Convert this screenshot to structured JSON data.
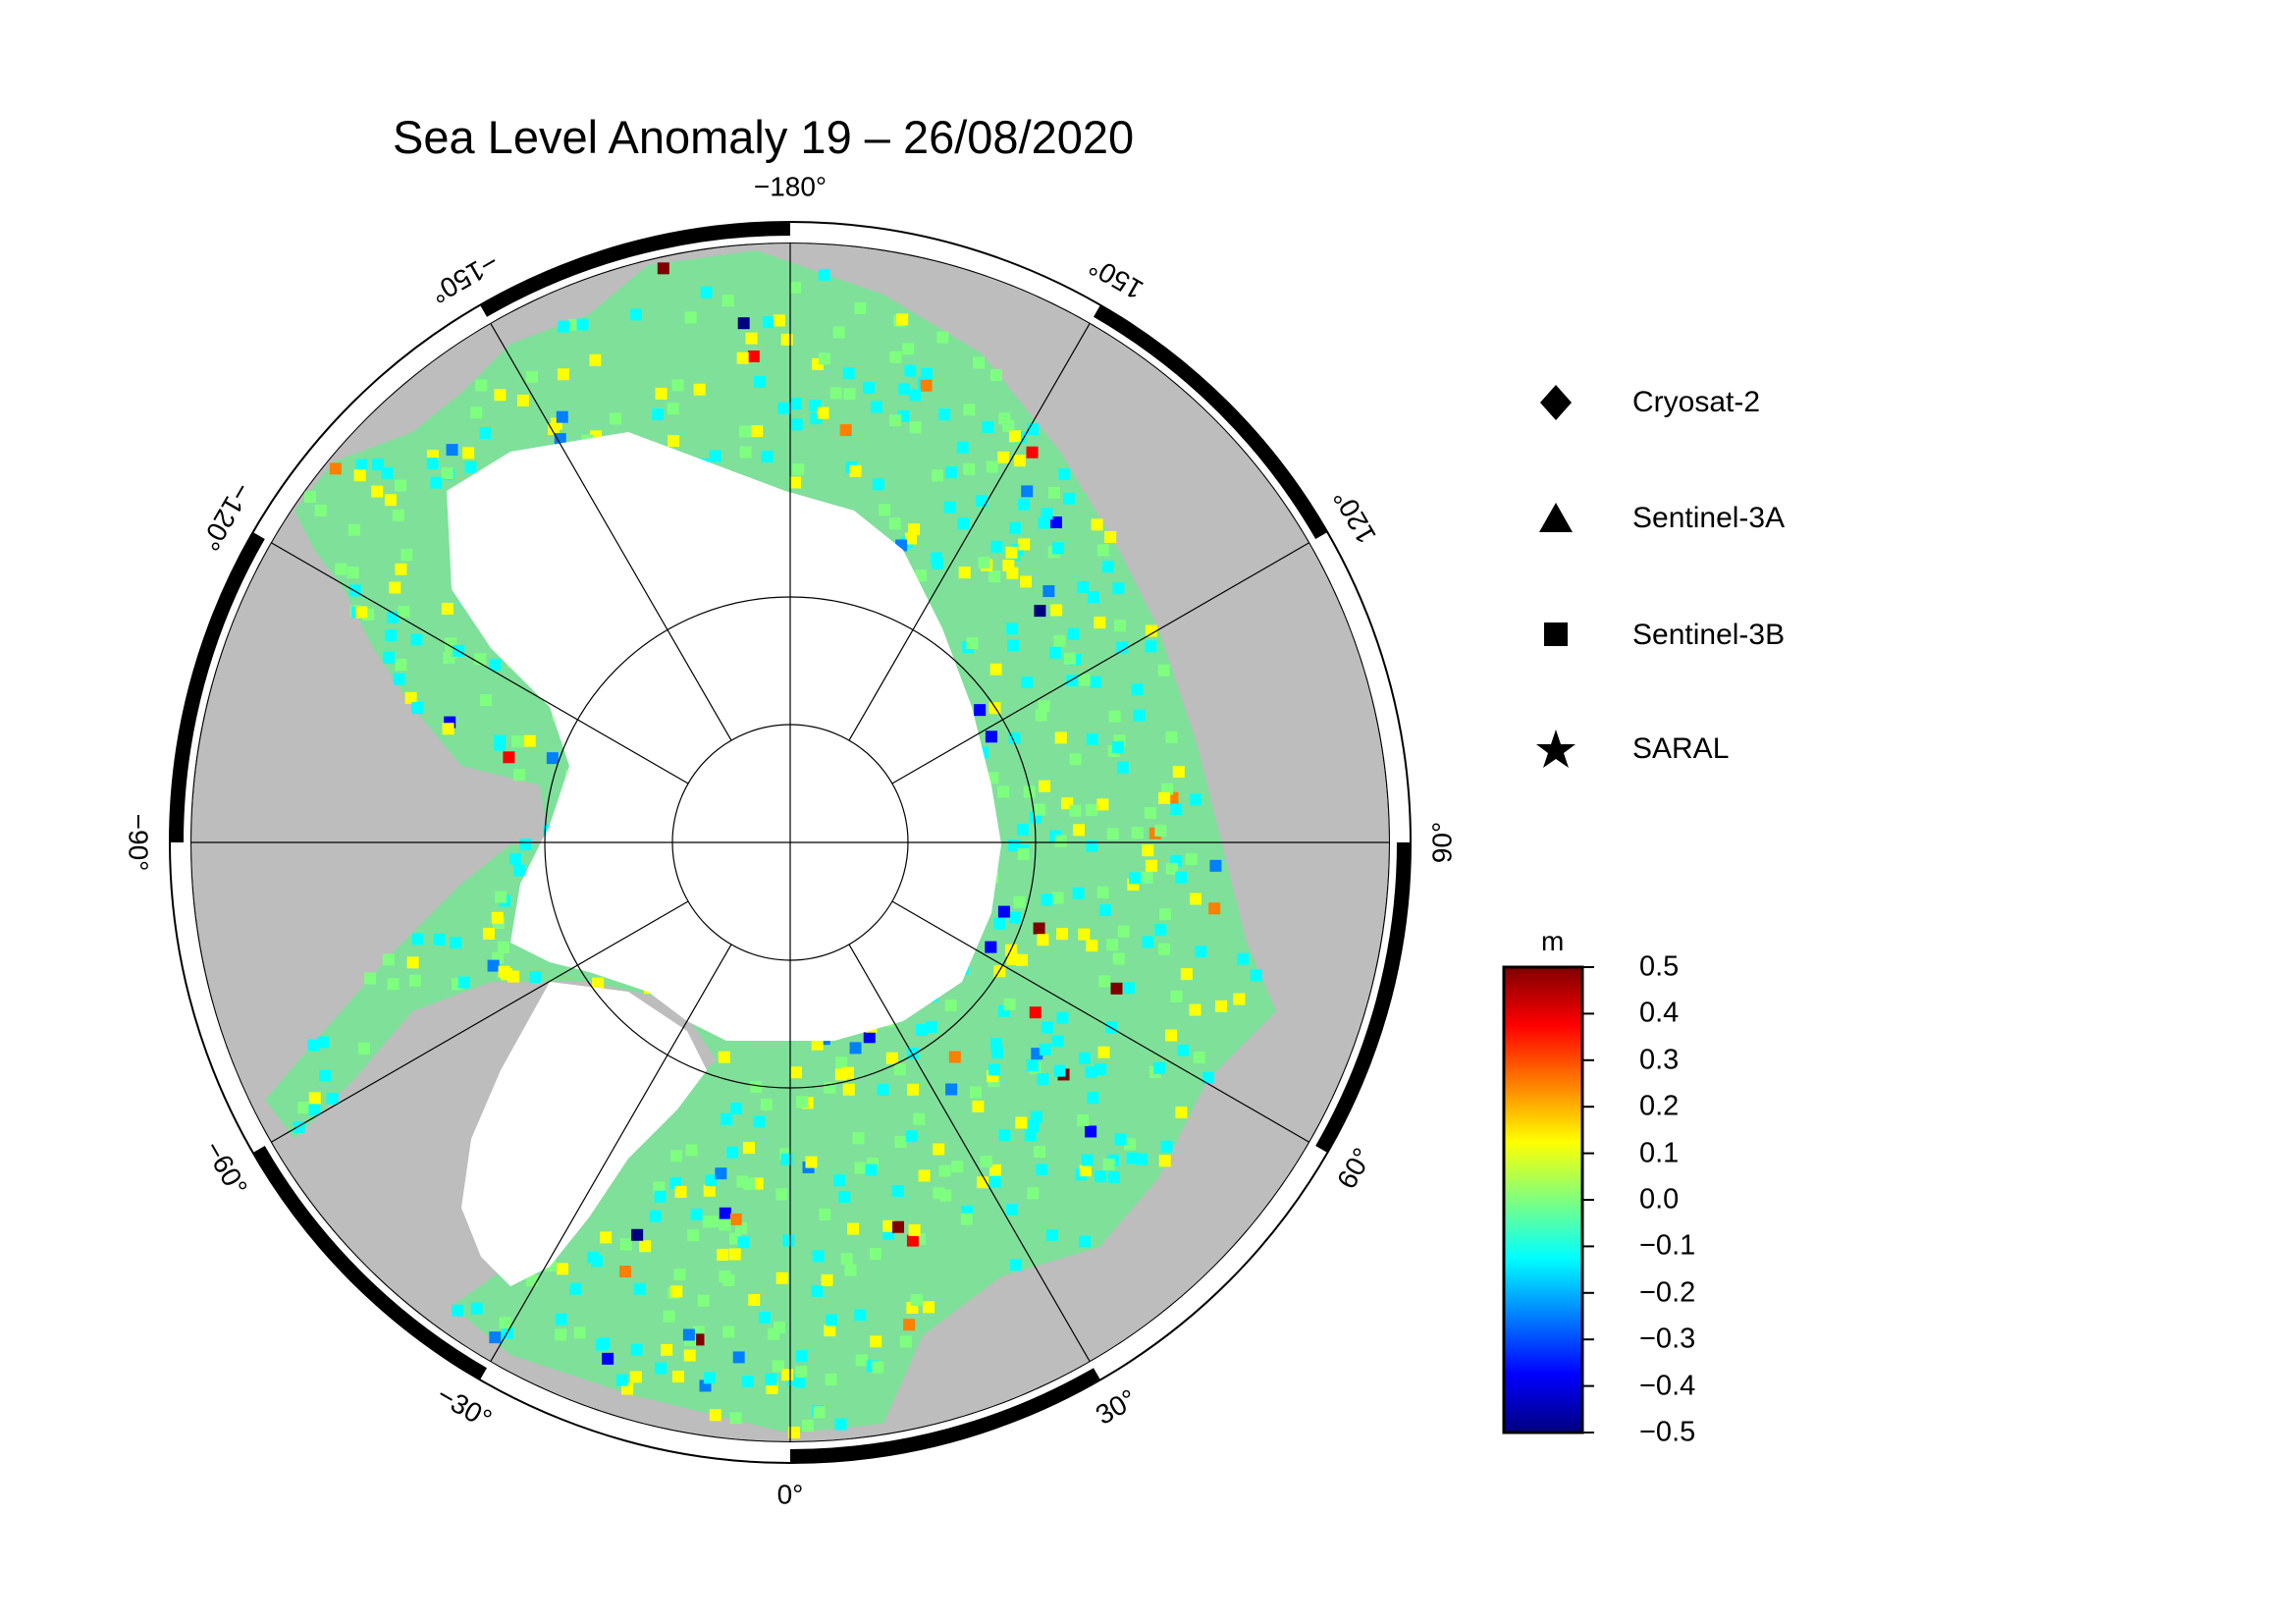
{
  "title": "Sea Level Anomaly 19 – 26/08/2020",
  "map": {
    "projection": "north-polar-stereographic",
    "longitude_labels": [
      {
        "lon": -180,
        "text": "−180°"
      },
      {
        "lon": 150,
        "text": "150°"
      },
      {
        "lon": 120,
        "text": "120°"
      },
      {
        "lon": 90,
        "text": "90°"
      },
      {
        "lon": 60,
        "text": "60°"
      },
      {
        "lon": 30,
        "text": "30°"
      },
      {
        "lon": 0,
        "text": "0°"
      },
      {
        "lon": -30,
        "text": "−30°"
      },
      {
        "lon": -60,
        "text": "−60°"
      },
      {
        "lon": -90,
        "text": "−90°"
      },
      {
        "lon": -120,
        "text": "−120°"
      },
      {
        "lon": -150,
        "text": "−150°"
      }
    ],
    "colors": {
      "land": "#bdbdbd",
      "ice": "#ffffff",
      "ocean_frame": "#000000"
    }
  },
  "legend": {
    "items": [
      {
        "label": "Cryosat-2",
        "symbol": "diamond"
      },
      {
        "label": "Sentinel-3A",
        "symbol": "triangle"
      },
      {
        "label": "Sentinel-3B",
        "symbol": "square"
      },
      {
        "label": "SARAL",
        "symbol": "star"
      }
    ]
  },
  "colorbar": {
    "unit": "m",
    "min": -0.5,
    "max": 0.5,
    "ticks": [
      "0.5",
      "0.4",
      "0.3",
      "0.2",
      "0.1",
      "0.0",
      "−0.1",
      "−0.2",
      "−0.3",
      "−0.4",
      "−0.5"
    ],
    "colormap": [
      "#00007f",
      "#0000ff",
      "#007fff",
      "#00ffff",
      "#7fff7f",
      "#ffff00",
      "#ff7f00",
      "#ff0000",
      "#7f0000"
    ]
  }
}
